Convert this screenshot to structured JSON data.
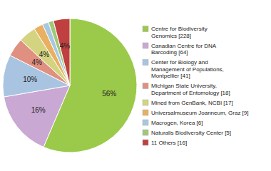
{
  "chart_data": {
    "type": "pie",
    "categories": [
      "Centre for Biodiversity\nGenomics [228]",
      "Canadian Centre for DNA\nBarcoding [64]",
      "Center for Biology and\nManagement of Populations,\nMontpellier [41]",
      "Michigan State University,\nDepartment of Entomology [18]",
      "Mined from GenBank, NCBI [17]",
      "Universalmuseum Joanneum, Graz [9]",
      "Macrogen, Korea [6]",
      "Naturalis Biodiversity Center [5]",
      "11 Others [16]"
    ],
    "values": [
      228,
      64,
      41,
      18,
      17,
      9,
      6,
      5,
      16
    ],
    "percentages": [
      {
        "value": 56,
        "label": "56%"
      },
      {
        "value": 16,
        "label": "16%"
      },
      {
        "value": 10,
        "label": "10%"
      },
      {
        "value": 4,
        "label": "4%"
      },
      {
        "value": 4,
        "label": "4%"
      },
      null,
      null,
      null,
      {
        "value": 4,
        "label": "4%"
      }
    ],
    "colors": [
      "#9bc94a",
      "#c9a8d4",
      "#a8c4e0",
      "#e09080",
      "#d4d480",
      "#e8b060",
      "#a8c8e0",
      "#a0c878",
      "#c04040"
    ],
    "legend": "right"
  }
}
